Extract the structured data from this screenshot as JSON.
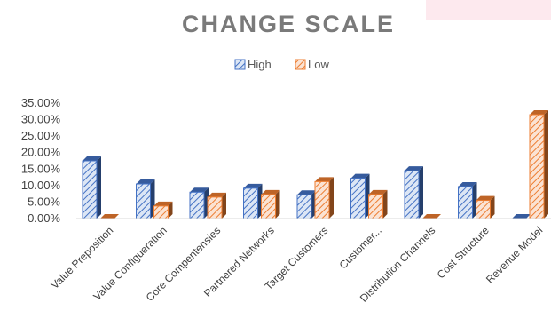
{
  "chart_data": {
    "type": "bar",
    "title": "CHANGE SCALE",
    "categories": [
      "Value Preposition",
      "Value Configueration",
      "Core Compentensies",
      "Partnered Networks",
      "Target Customers",
      "Customer...",
      "Distribution Channels",
      "Cost Structure",
      "Revenue Model"
    ],
    "series": [
      {
        "name": "High",
        "values": [
          0.175,
          0.105,
          0.08,
          0.092,
          0.072,
          0.122,
          0.145,
          0.097,
          0.0
        ],
        "color": "#4472C4"
      },
      {
        "name": "Low",
        "values": [
          0.0,
          0.038,
          0.065,
          0.073,
          0.112,
          0.073,
          0.0,
          0.055,
          0.315
        ],
        "color": "#ED7D31"
      }
    ],
    "yticks": [
      "35.00%",
      "30.00%",
      "25.00%",
      "20.00%",
      "15.00%",
      "10.00%",
      "5.00%",
      "0.00%"
    ],
    "ylim": [
      0,
      0.35
    ],
    "legend_position": "top-center",
    "grid": false,
    "style": "3d-clustered-column-hatched"
  }
}
